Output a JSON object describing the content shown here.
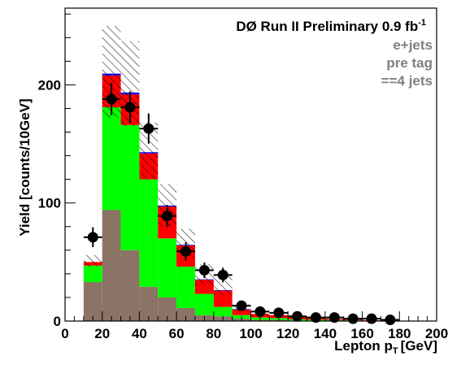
{
  "chart_data": {
    "type": "bar",
    "title": "",
    "xlabel": "Lepton p",
    "xlabel_sub": "T",
    "xlabel_unit": "[GeV]",
    "ylabel": "Yield [counts/10GeV]",
    "xlim": [
      0,
      200
    ],
    "ylim": [
      0,
      265
    ],
    "x_ticks": [
      "0",
      "20",
      "40",
      "60",
      "80",
      "100",
      "120",
      "140",
      "160",
      "180",
      "200"
    ],
    "y_ticks": [
      "0",
      "100",
      "200"
    ],
    "grid": false,
    "legend": "none",
    "bin_edges": [
      10,
      20,
      30,
      40,
      50,
      60,
      70,
      80,
      90,
      100,
      110,
      120,
      130,
      140,
      150,
      160,
      170,
      180
    ],
    "series": [
      {
        "values": [
          33,
          94,
          60,
          29,
          20,
          11,
          5,
          4,
          2,
          1,
          1,
          0.5,
          0.4,
          0.3,
          0.2,
          0.1,
          0.1
        ],
        "color": "#8b7365"
      },
      {
        "values": [
          14,
          87,
          106,
          91,
          50,
          35,
          18,
          8,
          3,
          2,
          1.5,
          1,
          0.7,
          0.5,
          0.3,
          0.2,
          0.1
        ],
        "color": "#00ff00"
      },
      {
        "values": [
          3,
          27,
          26,
          22,
          27,
          18,
          12,
          14,
          5,
          3,
          2.5,
          2,
          1.4,
          1,
          0.7,
          0.4,
          0.3
        ],
        "color": "#ff0000"
      },
      {
        "values": [
          0,
          1.5,
          1.5,
          1,
          0.8,
          0.5,
          0.3,
          0.2,
          0.1,
          0,
          0,
          0,
          0,
          0,
          0,
          0,
          0
        ],
        "color": "#0000ff"
      }
    ],
    "uncertainty_band": {
      "lower": [
        46,
        172,
        165,
        120,
        80,
        54,
        30,
        22,
        8,
        4,
        3,
        2,
        1.5,
        1,
        0.6,
        0.3,
        0.2
      ],
      "upper": [
        56,
        250,
        237,
        168,
        116,
        78,
        48,
        38,
        14,
        9,
        7,
        5,
        3.6,
        2.6,
        1.8,
        1.1,
        0.7
      ]
    },
    "data_points": {
      "x": [
        15,
        25,
        35,
        45,
        55,
        65,
        75,
        85,
        95,
        105,
        115,
        125,
        135,
        145,
        155,
        165,
        175
      ],
      "y": [
        71,
        188,
        181,
        163,
        89,
        59,
        43,
        39,
        13,
        8,
        7,
        4,
        3,
        3,
        2,
        2,
        1
      ],
      "yerr": [
        8.4,
        13.7,
        13.5,
        12.8,
        9.4,
        7.7,
        6.6,
        6.2,
        3.6,
        2.8,
        2.6,
        2,
        1.7,
        1.7,
        1.4,
        1.4,
        1
      ]
    },
    "annotations": [
      "DØ Run II Preliminary 0.9 fb",
      "e+jets",
      "pre tag",
      "==4 jets"
    ],
    "annotation_superscript": "-1",
    "colors": {
      "annotation_gray": "#808080",
      "annotation_black": "#000000"
    }
  }
}
